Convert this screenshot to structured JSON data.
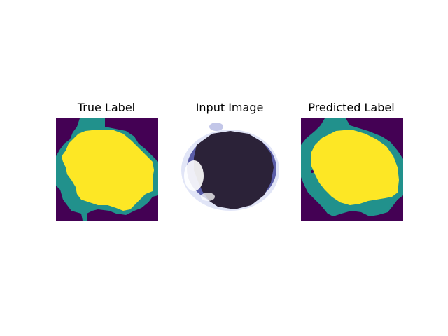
{
  "figure": {
    "panels": [
      {
        "title": "True Label"
      },
      {
        "title": "Input Image"
      },
      {
        "title": "Predicted Label"
      }
    ]
  },
  "colors": {
    "background_class": "#440154",
    "boundary_class": "#21918c",
    "object_class": "#fde725",
    "input_dark": "#2b2238",
    "input_blue": "#6a6fc0"
  }
}
